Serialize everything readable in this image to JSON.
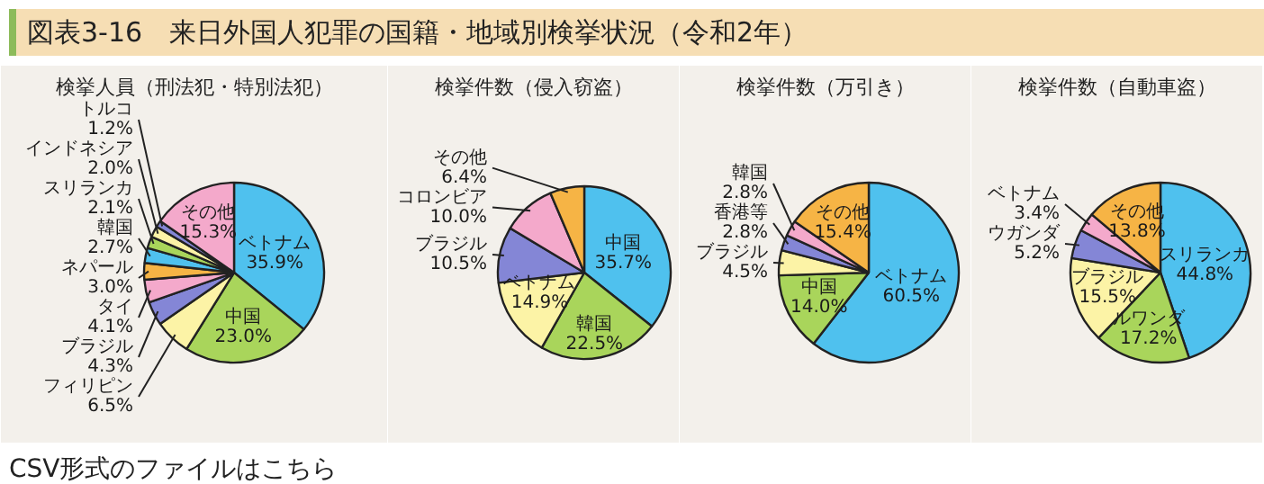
{
  "chart_data": [
    {
      "type": "pie",
      "title": "検挙人員（刑法犯・特別法犯）",
      "annotations": [
        "図表3-16　来日外国人犯罪の国籍・地域別検挙状況（令和2年）",
        "CSV形式のファイルはこちら"
      ],
      "categories": [
        "ベトナム",
        "中国",
        "フィリピン",
        "ブラジル",
        "タイ",
        "ネパール",
        "韓国",
        "スリランカ",
        "インドネシア",
        "トルコ",
        "その他"
      ],
      "values": [
        35.9,
        23.0,
        6.5,
        4.3,
        4.1,
        3.0,
        2.7,
        2.1,
        2.0,
        1.2,
        15.3
      ],
      "value_labels": [
        "35.9%",
        "23.0%",
        "6.5%",
        "4.3%",
        "4.1%",
        "3.0%",
        "2.7%",
        "2.1%",
        "2.0%",
        "1.2%",
        "15.3%"
      ],
      "colors": [
        "#4fc1ee",
        "#a9d55b",
        "#fcf3a6",
        "#8486d6",
        "#f4a9cb",
        "#f6b445",
        "#4fc1ee",
        "#a9d55b",
        "#fcf3a6",
        "#8486d6",
        "#f4a9cb"
      ]
    },
    {
      "type": "pie",
      "title": "検挙件数（侵入窃盗）",
      "categories": [
        "中国",
        "韓国",
        "ベトナム",
        "ブラジル",
        "コロンビア",
        "その他"
      ],
      "values": [
        35.7,
        22.5,
        14.9,
        10.5,
        10.0,
        6.4
      ],
      "value_labels": [
        "35.7%",
        "22.5%",
        "14.9%",
        "10.5%",
        "10.0%",
        "6.4%"
      ],
      "colors": [
        "#4fc1ee",
        "#a9d55b",
        "#fcf3a6",
        "#8486d6",
        "#f4a9cb",
        "#f6b445"
      ]
    },
    {
      "type": "pie",
      "title": "検挙件数（万引き）",
      "categories": [
        "ベトナム",
        "中国",
        "ブラジル",
        "香港等",
        "韓国",
        "その他"
      ],
      "values": [
        60.5,
        14.0,
        4.5,
        2.8,
        2.8,
        15.4
      ],
      "value_labels": [
        "60.5%",
        "14.0%",
        "4.5%",
        "2.8%",
        "2.8%",
        "15.4%"
      ],
      "colors": [
        "#4fc1ee",
        "#a9d55b",
        "#fcf3a6",
        "#8486d6",
        "#f4a9cb",
        "#f6b445"
      ]
    },
    {
      "type": "pie",
      "title": "検挙件数（自動車盗）",
      "categories": [
        "スリランカ",
        "ルワンダ",
        "ブラジル",
        "ウガンダ",
        "ベトナム",
        "その他"
      ],
      "values": [
        44.8,
        17.2,
        15.5,
        5.2,
        3.4,
        13.8
      ],
      "value_labels": [
        "44.8%",
        "17.2%",
        "15.5%",
        "5.2%",
        "3.4%",
        "13.8%"
      ],
      "colors": [
        "#4fc1ee",
        "#a9d55b",
        "#fcf3a6",
        "#8486d6",
        "#f4a9cb",
        "#f6b445"
      ]
    }
  ]
}
